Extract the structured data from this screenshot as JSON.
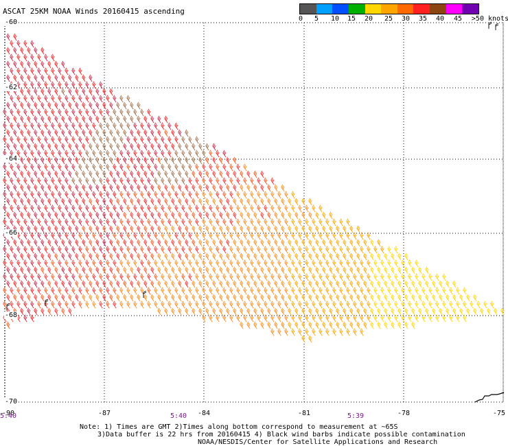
{
  "title": "ASCAT 25KM NOAA Winds 20160415 ascending",
  "legend": {
    "colors": [
      "#555555",
      "#00a0ff",
      "#0050ff",
      "#00b000",
      "#ffd700",
      "#ffa500",
      "#ff6a00",
      "#ff2020",
      "#8b4513",
      "#ff00ff",
      "#7000b0"
    ],
    "labels": [
      "0",
      "5",
      "10",
      "15",
      "20",
      "25",
      "30",
      "35",
      "40",
      "45",
      ">50 knots"
    ]
  },
  "axes": {
    "lat_labels": [
      "-60",
      "-62",
      "-64",
      "-66",
      "-68",
      "-70"
    ],
    "lon_labels": [
      "-90",
      "-87",
      "-84",
      "-81",
      "-78",
      "-75"
    ]
  },
  "times": [
    "5:40",
    "5:40",
    "5:39"
  ],
  "notes": {
    "line1": "Note: 1) Times are GMT 2)Times along bottom correspond to measurement at ~65S",
    "line2": "3)Data buffer is 22 hrs from 20160415 4) Black wind barbs indicate possible contamination",
    "line3": "NOAA/NESDIS/Center for Satellite Applications and Research"
  },
  "map": {
    "lon_range": [
      -90,
      -75
    ],
    "lat_range": [
      -70,
      -60
    ],
    "grid": "dotted",
    "swath": [
      [
        -90.0,
        -60.2
      ],
      [
        -75.0,
        -67.9
      ],
      [
        -75.0,
        -68.0
      ],
      [
        -78.0,
        -68.3
      ],
      [
        -81.0,
        -68.6
      ],
      [
        -84.0,
        -68.1
      ],
      [
        -86.5,
        -67.8
      ],
      [
        -88.5,
        -68.0
      ],
      [
        -90.0,
        -68.3
      ]
    ]
  }
}
